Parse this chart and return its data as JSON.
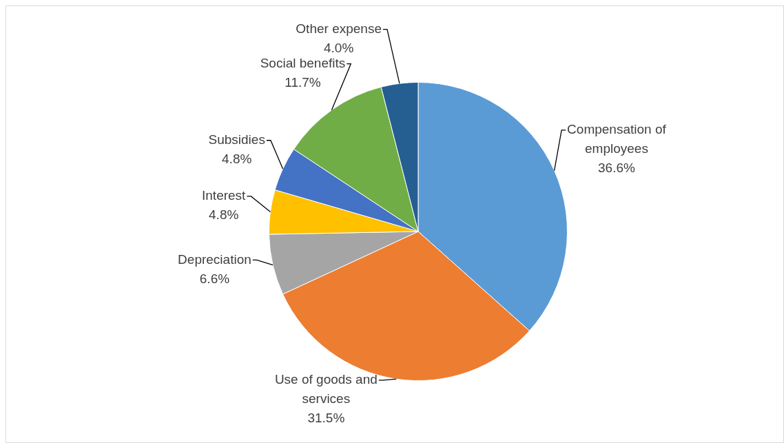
{
  "chart_data": {
    "type": "pie",
    "categories": [
      "Compensation of employees",
      "Use of goods and services",
      "Depreciation",
      "Interest",
      "Subsidies",
      "Social benefits",
      "Other expense"
    ],
    "values": [
      36.6,
      31.5,
      6.6,
      4.8,
      4.8,
      11.7,
      4.0
    ],
    "colors": [
      "#5b9bd5",
      "#ed7d31",
      "#a5a5a5",
      "#ffc000",
      "#4472c4",
      "#70ad47",
      "#255e91"
    ],
    "value_labels": [
      "36.6%",
      "31.5%",
      "6.6%",
      "4.8%",
      "4.8%",
      "11.7%",
      "4.0%"
    ],
    "legend": false
  }
}
